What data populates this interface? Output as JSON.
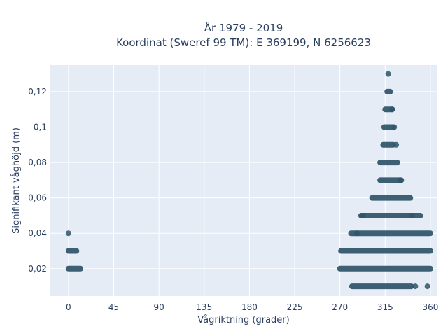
{
  "chart_data": {
    "type": "scatter",
    "title_line1": "År 1979 - 2019",
    "title_line2": "Koordinat (Sweref 99 TM): E 369199, N 6256623",
    "xlabel": "Vågriktning (grader)",
    "ylabel": "Signifikant våghöjd (m)",
    "xlim": [
      -18,
      367
    ],
    "ylim": [
      0.0045,
      0.135
    ],
    "x_ticks": [
      0,
      45,
      90,
      135,
      180,
      225,
      270,
      315,
      360
    ],
    "x_tick_labels": [
      "0",
      "45",
      "90",
      "135",
      "180",
      "225",
      "270",
      "315",
      "360"
    ],
    "y_ticks": [
      0.02,
      0.04,
      0.06,
      0.08,
      0.1,
      0.12
    ],
    "y_tick_labels": [
      "0,02",
      "0,04",
      "0,06",
      "0,08",
      "0,1",
      "0,12"
    ],
    "grid": true,
    "colors": {
      "plot_bg": "#e5ecf6",
      "grid": "#ffffff",
      "marker": "#2f5468",
      "text": "#2a3f5f"
    },
    "series": [
      {
        "bands": [
          {
            "y": 0.01,
            "x_min": 282,
            "x_max": 341
          },
          {
            "y": 0.02,
            "x_min": 0,
            "x_max": 12
          },
          {
            "y": 0.02,
            "x_min": 270,
            "x_max": 360
          },
          {
            "y": 0.03,
            "x_min": 0,
            "x_max": 8
          },
          {
            "y": 0.03,
            "x_min": 271,
            "x_max": 360
          },
          {
            "y": 0.04,
            "x_min": 281,
            "x_max": 360
          },
          {
            "y": 0.05,
            "x_min": 291,
            "x_max": 350
          },
          {
            "y": 0.06,
            "x_min": 302,
            "x_max": 340
          },
          {
            "y": 0.07,
            "x_min": 310,
            "x_max": 331
          },
          {
            "y": 0.08,
            "x_min": 310,
            "x_max": 327
          },
          {
            "y": 0.09,
            "x_min": 313,
            "x_max": 323
          },
          {
            "y": 0.1,
            "x_min": 314,
            "x_max": 323
          },
          {
            "y": 0.11,
            "x_min": 315,
            "x_max": 322
          },
          {
            "y": 0.12,
            "x_min": 317,
            "x_max": 320
          }
        ],
        "points": [
          {
            "x": 0,
            "y": 0.04
          },
          {
            "x": 318,
            "y": 0.13
          },
          {
            "x": 357,
            "y": 0.01
          },
          {
            "x": 345,
            "y": 0.01
          },
          {
            "x": 287,
            "y": 0.04
          },
          {
            "x": 293,
            "y": 0.05
          },
          {
            "x": 322,
            "y": 0.11
          },
          {
            "x": 324,
            "y": 0.1
          },
          {
            "x": 326,
            "y": 0.09
          },
          {
            "x": 330,
            "y": 0.07
          },
          {
            "x": 342,
            "y": 0.05
          }
        ]
      }
    ]
  }
}
